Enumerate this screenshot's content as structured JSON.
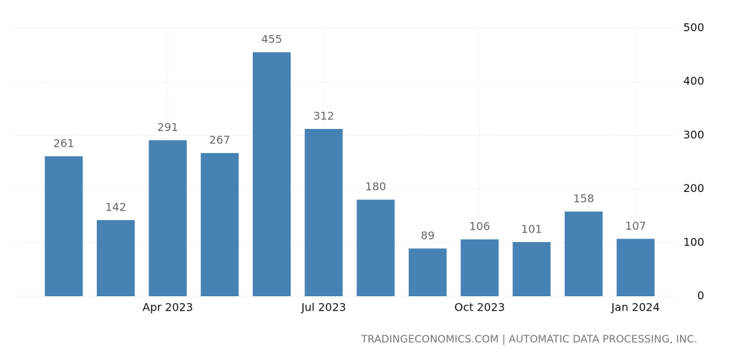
{
  "chart_data": {
    "type": "bar",
    "categories": [
      null,
      null,
      "Apr 2023",
      null,
      null,
      "Jul 2023",
      null,
      null,
      "Oct 2023",
      null,
      null,
      "Jan 2024"
    ],
    "values": [
      261,
      142,
      291,
      267,
      455,
      312,
      180,
      89,
      106,
      101,
      158,
      107
    ],
    "color": "#4682b4",
    "ylim": [
      0,
      500
    ],
    "yticks": [
      0,
      100,
      200,
      300,
      400,
      500
    ],
    "grid": true,
    "source": "TRADINGECONOMICS.COM | AUTOMATIC DATA PROCESSING, INC."
  }
}
